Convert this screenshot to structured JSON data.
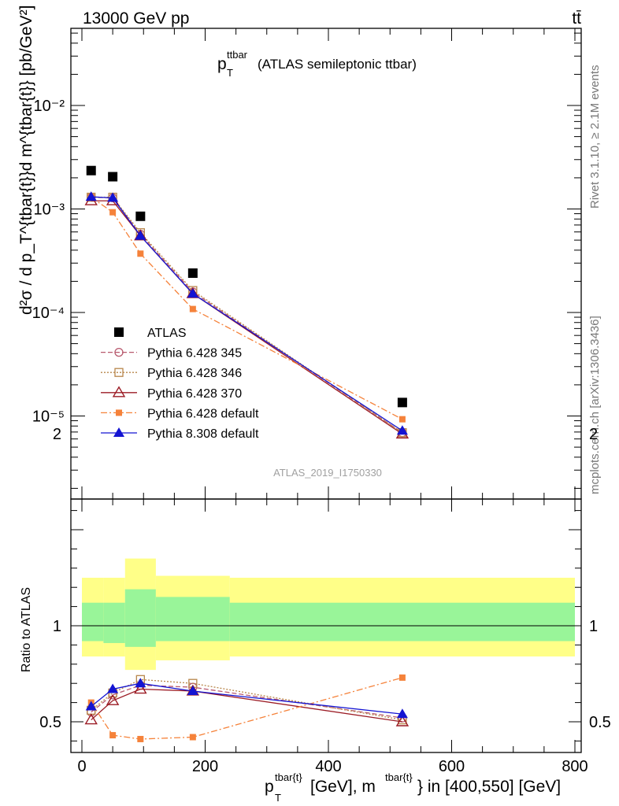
{
  "header": {
    "energy_label": "13000 GeV pp",
    "process_label": "tt̄"
  },
  "side": {
    "rivet_label": "Rivet 3.1.10, ≥ 2.1M events",
    "mcplots_label": "mcplots.cern.ch [arXiv:1306.3436]"
  },
  "chart_data": [
    {
      "type": "scatter",
      "panel": "main",
      "title_main": "p",
      "title_sup": "ttbar",
      "title_sub": "T",
      "title_rest": "(ATLAS semileptonic ttbar)",
      "analysis_label": "ATLAS_2019_I1750330",
      "ylabel": "d²σ / d p_T^{tbar{t}}d m^{tbar{t}} [pb/GeV²]",
      "yscale": "log",
      "ylim": [
        2e-06,
        0.06
      ],
      "xlim": [
        -20,
        810
      ],
      "y_tick_labels": [
        "10⁻⁵",
        "10⁻⁴",
        "10⁻³",
        "10⁻²"
      ],
      "y_tick_values": [
        1e-05,
        0.0001,
        0.001,
        0.01
      ],
      "legend_position": "lower-left",
      "x": [
        15,
        50,
        95,
        180,
        520
      ],
      "series": [
        {
          "name": "ATLAS",
          "color": "#000000",
          "marker": "square-filled",
          "line": "none",
          "values": [
            0.00235,
            0.00205,
            0.00085,
            0.00024,
            1.35e-05
          ]
        },
        {
          "name": "Pythia 6.428 345",
          "color": "#b85a6e",
          "marker": "circle-open",
          "line": "dashed",
          "values": [
            0.0013,
            0.00128,
            0.00057,
            0.000158,
            6.9e-06
          ]
        },
        {
          "name": "Pythia 6.428 346",
          "color": "#b8864a",
          "marker": "square-open",
          "line": "dotted",
          "values": [
            0.0013,
            0.0013,
            0.00059,
            0.000163,
            6.9e-06
          ]
        },
        {
          "name": "Pythia 6.428 370",
          "color": "#9b1b24",
          "marker": "triangle-open",
          "line": "solid",
          "values": [
            0.0012,
            0.0012,
            0.00055,
            0.000152,
            6.7e-06
          ]
        },
        {
          "name": "Pythia 6.428 default",
          "color": "#f5823a",
          "marker": "square-filled-small",
          "line": "dashdot",
          "values": [
            0.0013,
            0.00093,
            0.00037,
            0.000108,
            9.3e-06
          ]
        },
        {
          "name": "Pythia 8.308 default",
          "color": "#1414d2",
          "marker": "triangle-filled",
          "line": "solid",
          "values": [
            0.00131,
            0.00128,
            0.00055,
            0.000152,
            7.2e-06
          ]
        }
      ]
    },
    {
      "type": "line",
      "panel": "ratio",
      "ylabel": "Ratio to ATLAS",
      "xlabel_main": "p",
      "xlabel_sub": "T",
      "xlabel_sup1": "tbar{t}",
      "xlabel_mid": "[GeV], m",
      "xlabel_sup2": "tbar{t}",
      "xlabel_end": "} in [400,550] [GeV]",
      "ylim": [
        0.35,
        2.35
      ],
      "xlim": [
        -20,
        810
      ],
      "y_tick_labels": [
        "0.5",
        "1",
        "2"
      ],
      "y_tick_values": [
        0.5,
        1,
        2
      ],
      "x_tick_labels": [
        "0",
        "200",
        "400",
        "600",
        "800"
      ],
      "x_tick_values": [
        0,
        200,
        400,
        600,
        800
      ],
      "bins": [
        [
          0,
          35
        ],
        [
          35,
          70
        ],
        [
          70,
          120
        ],
        [
          120,
          240
        ],
        [
          240,
          800
        ]
      ],
      "band_outer": [
        [
          0.84,
          1.25
        ],
        [
          0.84,
          1.25
        ],
        [
          0.77,
          1.35
        ],
        [
          0.82,
          1.26
        ],
        [
          0.84,
          1.25
        ]
      ],
      "band_inner": [
        [
          0.92,
          1.12
        ],
        [
          0.91,
          1.12
        ],
        [
          0.89,
          1.19
        ],
        [
          0.92,
          1.15
        ],
        [
          0.92,
          1.12
        ]
      ],
      "x": [
        15,
        50,
        95,
        180,
        520
      ],
      "series": [
        {
          "name": "Pythia 6.428 345",
          "color": "#b85a6e",
          "marker": "circle-open",
          "line": "dashed",
          "values": [
            0.55,
            0.64,
            0.69,
            0.68,
            0.52
          ]
        },
        {
          "name": "Pythia 6.428 346",
          "color": "#b8864a",
          "marker": "square-open",
          "line": "dotted",
          "values": [
            0.56,
            0.65,
            0.72,
            0.7,
            0.51
          ]
        },
        {
          "name": "Pythia 6.428 370",
          "color": "#9b1b24",
          "marker": "triangle-open",
          "line": "solid",
          "values": [
            0.51,
            0.61,
            0.67,
            0.66,
            0.5
          ]
        },
        {
          "name": "Pythia 6.428 default",
          "color": "#f5823a",
          "marker": "square-filled-small",
          "line": "dashdot",
          "values": [
            0.6,
            0.43,
            0.41,
            0.42,
            0.73
          ]
        },
        {
          "name": "Pythia 8.308 default",
          "color": "#1414d2",
          "marker": "triangle-filled",
          "line": "solid",
          "values": [
            0.58,
            0.67,
            0.7,
            0.66,
            0.54
          ]
        }
      ]
    }
  ]
}
